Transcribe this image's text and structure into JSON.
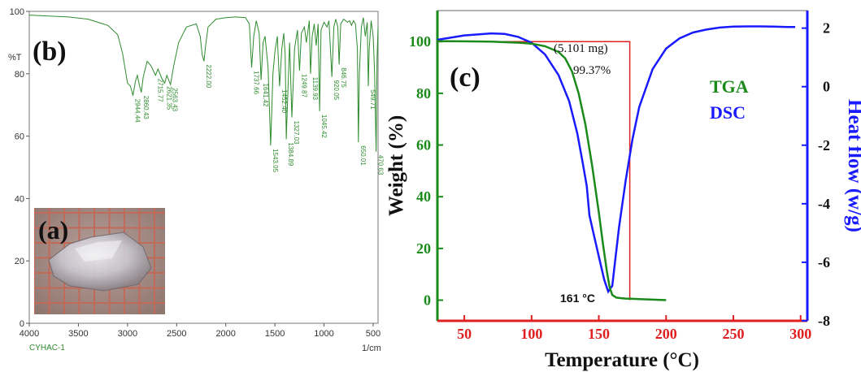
{
  "chart_data": [
    {
      "type": "line",
      "panel_label": "(b)",
      "xlabel": "1/cm",
      "ylabel": "%T",
      "footer_label": "CYHAC-1",
      "xlim": [
        4000,
        450
      ],
      "ylim": [
        0,
        100
      ],
      "x_ticks": [
        4000,
        3500,
        3000,
        2500,
        2000,
        1500,
        1000,
        500
      ],
      "y_ticks": [
        0,
        20,
        40,
        60,
        80,
        100
      ],
      "line_color": "#2e8b2e",
      "series": [
        {
          "x": [
            4000,
            3800,
            3600,
            3400,
            3200,
            3100,
            3050,
            3000,
            2970,
            2944,
            2920,
            2900,
            2880,
            2860,
            2840,
            2800,
            2760,
            2715,
            2690,
            2650,
            2621,
            2600,
            2563,
            2530,
            2480,
            2400,
            2300,
            2260,
            2240,
            2222,
            2205,
            2180,
            2100,
            2000,
            1900,
            1800,
            1760,
            1737,
            1715,
            1690,
            1660,
            1641,
            1620,
            1600,
            1570,
            1543,
            1520,
            1500,
            1475,
            1452,
            1430,
            1410,
            1395,
            1384,
            1370,
            1350,
            1327,
            1300,
            1270,
            1249,
            1230,
            1200,
            1180,
            1150,
            1138,
            1120,
            1100,
            1080,
            1060,
            1045,
            1030,
            1000,
            970,
            950,
            920,
            900,
            880,
            860,
            846,
            830,
            800,
            780,
            760,
            740,
            720,
            700,
            680,
            660,
            650,
            640,
            620,
            600,
            580,
            560,
            549,
            540,
            520,
            500,
            485,
            470,
            460,
            450
          ],
          "y": [
            98.8,
            98.5,
            98.2,
            97.5,
            95.5,
            92.5,
            86.5,
            77.0,
            76.0,
            73.0,
            77.5,
            79.5,
            76.5,
            74.0,
            79.0,
            84.0,
            82.5,
            79.5,
            81.5,
            78.5,
            77.0,
            79.5,
            76.5,
            82.5,
            90.0,
            95.0,
            96.0,
            92.0,
            86.0,
            84.0,
            89.0,
            95.0,
            97.5,
            98.0,
            98.2,
            98.0,
            96.0,
            82.0,
            92.0,
            97.0,
            93.0,
            78.0,
            90.0,
            92.0,
            82.0,
            57.0,
            80.0,
            87.0,
            92.0,
            76.0,
            88.0,
            93.0,
            86.0,
            59.0,
            72.0,
            90.0,
            66.0,
            88.0,
            94.0,
            81.0,
            93.0,
            95.0,
            90.0,
            97.0,
            80.0,
            92.0,
            96.0,
            89.0,
            96.0,
            68.0,
            94.0,
            96.5,
            95.0,
            97.0,
            79.0,
            95.0,
            97.5,
            95.0,
            83.0,
            96.0,
            97.5,
            97.0,
            96.5,
            97.0,
            95.5,
            97.0,
            96.0,
            88.0,
            58.0,
            80.0,
            95.0,
            98.0,
            92.0,
            96.5,
            76.0,
            88.0,
            97.0,
            92.0,
            80.0,
            55.0,
            85.0,
            95.0
          ]
        }
      ],
      "peak_labels": [
        {
          "x": 2944,
          "text": "2944.44"
        },
        {
          "x": 2860,
          "text": "2860.43"
        },
        {
          "x": 2715,
          "text": "2715.77"
        },
        {
          "x": 2621,
          "text": "2621.35"
        },
        {
          "x": 2563,
          "text": "2563.43"
        },
        {
          "x": 2222,
          "text": "2222.00"
        },
        {
          "x": 1737,
          "text": "1737.66"
        },
        {
          "x": 1641,
          "text": "1641.42"
        },
        {
          "x": 1543,
          "text": "1543.05"
        },
        {
          "x": 1452,
          "text": "1452.40"
        },
        {
          "x": 1384,
          "text": "1384.89"
        },
        {
          "x": 1327,
          "text": "1327.03"
        },
        {
          "x": 1249,
          "text": "1249.87"
        },
        {
          "x": 1138,
          "text": "1139.93"
        },
        {
          "x": 1045,
          "text": "1045.42"
        },
        {
          "x": 920,
          "text": "920.05"
        },
        {
          "x": 846,
          "text": "846.75"
        },
        {
          "x": 650,
          "text": "650.01"
        },
        {
          "x": 549,
          "text": "549.71"
        },
        {
          "x": 470,
          "text": "470.63"
        }
      ],
      "inset": {
        "label": "(a)",
        "image": "photo of a transparent crystal on red millimeter grid paper",
        "grid_color": "#c26a5a",
        "background_color": "#a9928c"
      }
    },
    {
      "type": "line",
      "panel_label": "(c)",
      "xlabel": "Temperature (°C)",
      "ylabel": "Weight (%)",
      "y2label": "Heat flow (w/g)",
      "xlim": [
        30,
        305
      ],
      "ylim": [
        -8,
        112
      ],
      "y2lim": [
        -8,
        2.6
      ],
      "x_ticks": [
        50,
        100,
        150,
        200,
        250,
        300
      ],
      "y_ticks": [
        0,
        20,
        40,
        60,
        80,
        100
      ],
      "y2_ticks": [
        -8,
        -6,
        -4,
        -2,
        0,
        2
      ],
      "x_axis_color": "#e02020",
      "y_axis_color": "#1a8a1a",
      "y2_axis_color": "#1a1aff",
      "series": [
        {
          "name": "TGA",
          "color": "#1a8a1a",
          "axis": "left",
          "x": [
            30,
            50,
            70,
            90,
            100,
            110,
            120,
            125,
            130,
            135,
            140,
            145,
            150,
            153,
            156,
            158,
            160,
            163,
            166,
            170,
            175,
            180,
            190,
            200
          ],
          "y": [
            100.2,
            100.1,
            100.0,
            99.6,
            99.2,
            98.2,
            96.0,
            93.5,
            88.5,
            80.0,
            68.0,
            52.0,
            34.0,
            22.0,
            11.0,
            5.0,
            2.0,
            1.0,
            0.8,
            0.6,
            0.5,
            0.4,
            0.2,
            0.0
          ]
        },
        {
          "name": "DSC",
          "color": "#1a1aff",
          "axis": "right",
          "x": [
            30,
            50,
            70,
            80,
            90,
            100,
            110,
            120,
            128,
            134,
            138,
            141,
            143,
            146,
            150,
            154,
            157,
            160,
            162,
            165,
            170,
            175,
            180,
            190,
            200,
            210,
            220,
            230,
            240,
            250,
            260,
            270,
            280,
            290,
            296
          ],
          "y": [
            1.6,
            1.75,
            1.82,
            1.8,
            1.7,
            1.5,
            1.1,
            0.4,
            -0.5,
            -1.6,
            -2.6,
            -3.4,
            -4.4,
            -5.0,
            -5.8,
            -6.6,
            -7.0,
            -6.8,
            -6.0,
            -4.8,
            -3.2,
            -1.8,
            -0.7,
            0.6,
            1.3,
            1.65,
            1.85,
            1.95,
            2.02,
            2.05,
            2.06,
            2.06,
            2.05,
            2.04,
            2.04
          ]
        }
      ],
      "legend": [
        {
          "text": "TGA",
          "color": "#1a8a1a"
        },
        {
          "text": "DSC",
          "color": "#1a1aff"
        }
      ],
      "marker_box": {
        "x_start": 30,
        "x_end": 173,
        "y_top": 100,
        "y_bottom": 0,
        "color": "#e02020"
      },
      "annotations": [
        {
          "text": "(5.101 mg)",
          "x": 118,
          "y": 95
        },
        {
          "text": "99.37%",
          "x": 120,
          "y": 87.5
        },
        {
          "text": "161 °C",
          "x": 127,
          "y": -2
        }
      ]
    }
  ]
}
